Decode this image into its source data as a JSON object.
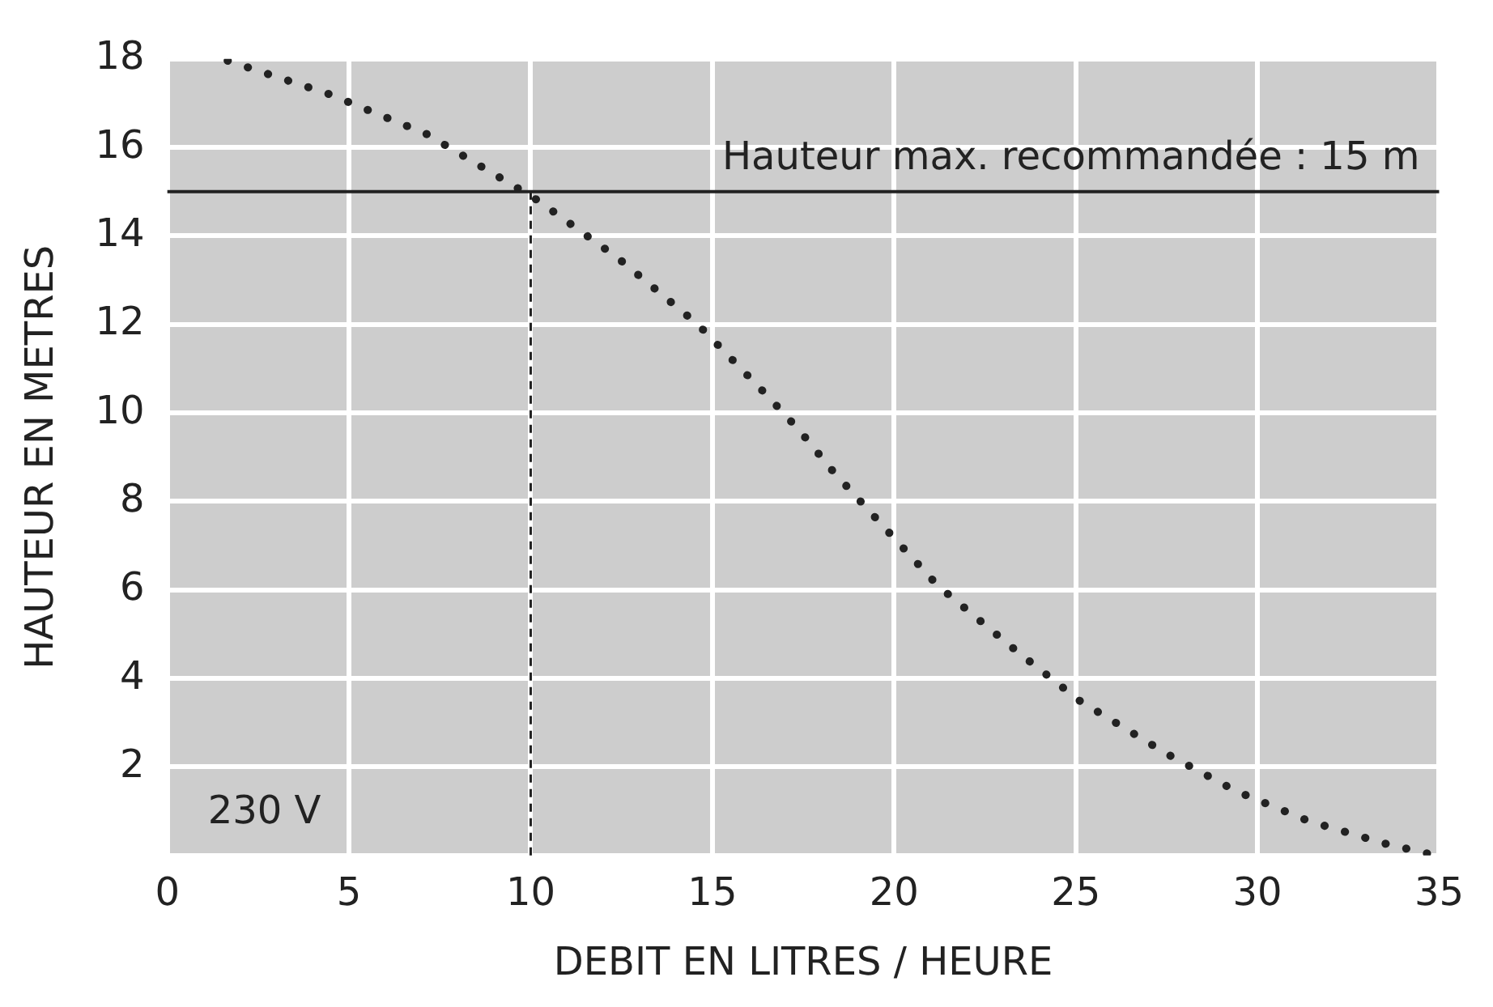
{
  "chart_data": {
    "type": "line",
    "xlabel": "DEBIT EN LITRES / HEURE",
    "ylabel": "HAUTEUR EN METRES",
    "x": [
      1.66,
      4.47,
      7.14,
      9.6,
      10.2,
      12.4,
      14.6,
      16.5,
      17.4,
      18.3,
      19.3,
      21.2,
      23.4,
      25.1,
      27.5,
      29.4,
      31.4,
      33.5,
      34.9
    ],
    "series": [
      {
        "color": "#222222",
        "values": [
          17.96,
          17.2,
          16.3,
          15.1,
          14.8,
          13.5,
          12.0,
          10.4,
          9.6,
          8.7,
          7.8,
          6.1,
          4.6,
          3.5,
          2.3,
          1.46,
          0.78,
          0.27,
          0.0
        ]
      }
    ],
    "xlim": [
      0,
      35
    ],
    "ylim": [
      0,
      18
    ],
    "xticks": [
      0,
      5,
      10,
      15,
      20,
      25,
      30,
      35
    ],
    "yticks": [
      {
        "value": 0,
        "label": null
      },
      2,
      4,
      6,
      8,
      10,
      12,
      14,
      16,
      18
    ],
    "grid": true,
    "line_style": "dotted",
    "marker": "none",
    "ref_lines": [
      {
        "axis": "y",
        "value": 15,
        "label": "Hauteur max. recommandée : 15 m",
        "color": "#222222",
        "line_style": "solid"
      },
      {
        "axis": "x",
        "value": 10,
        "color": "#222222",
        "line_style": "dashed"
      }
    ],
    "annotations": [
      "230 V"
    ]
  }
}
